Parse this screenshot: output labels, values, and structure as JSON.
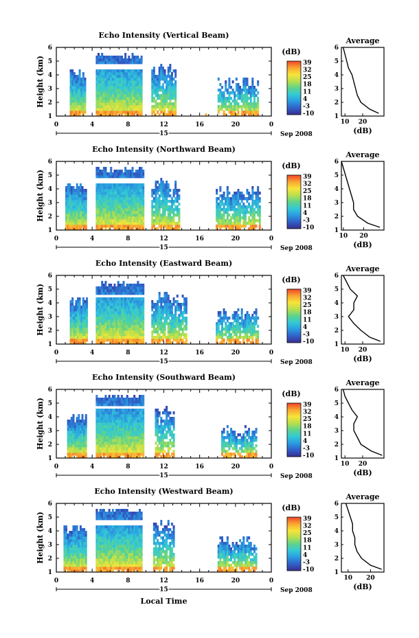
{
  "figure": {
    "colorbar": {
      "unit_label": "(dB)",
      "tick_labels": [
        "39",
        "32",
        "25",
        "18",
        "11",
        "4",
        "-3",
        "-10"
      ],
      "colors": [
        "#3a2f8f",
        "#2f5fc8",
        "#2b9be0",
        "#33c9d6",
        "#5fd38a",
        "#b9e04c",
        "#f7e43a",
        "#f9a531",
        "#f0442a"
      ]
    },
    "x_axis": {
      "tick_labels": [
        "0",
        "4",
        "8",
        "12",
        "16",
        "20",
        "0"
      ],
      "day_label": "15",
      "month_label": "Sep 2008",
      "label": "Local Time"
    },
    "avg_title": "Average",
    "avg_xlabel": "(dB)"
  },
  "chart_data": [
    {
      "type": "heatmap",
      "title": "Echo Intensity (Vertical Beam)",
      "ylabel": "Height (km)",
      "x_ticks": [
        0,
        4,
        8,
        12,
        16,
        20,
        24
      ],
      "y_ticks": [
        1,
        2,
        3,
        4,
        5,
        6
      ],
      "xlim": [
        0,
        24
      ],
      "ylim": [
        1,
        6
      ],
      "clim": [
        -10,
        39
      ],
      "segments": [
        [
          1.5,
          3.2
        ],
        [
          4.4,
          9.6
        ],
        [
          10.6,
          13.4
        ],
        [
          16.4,
          16.8
        ],
        [
          18.0,
          22.6
        ]
      ],
      "tops": [
        4.4,
        5.5,
        4.8,
        1.6,
        3.8
      ],
      "gap_rows": [
        4.5,
        4.7
      ],
      "average": {
        "title": "Average",
        "xlabel": "(dB)",
        "x_ticks": [
          10,
          20
        ],
        "xlim": [
          8,
          32
        ],
        "height": [
          1.2,
          1.5,
          2.0,
          2.5,
          3.0,
          3.5,
          4.0,
          4.5,
          5.0,
          5.5,
          6.0
        ],
        "value": [
          29,
          24,
          19,
          17,
          16,
          15,
          14,
          12,
          11,
          10,
          9
        ]
      }
    },
    {
      "type": "heatmap",
      "title": "Echo Intensity (Northward Beam)",
      "ylabel": "Height (km)",
      "x_ticks": [
        0,
        4,
        8,
        12,
        16,
        20,
        24
      ],
      "y_ticks": [
        1,
        2,
        3,
        4,
        5,
        6
      ],
      "xlim": [
        0,
        24
      ],
      "ylim": [
        1,
        6
      ],
      "clim": [
        -10,
        39
      ],
      "segments": [
        [
          1.0,
          3.4
        ],
        [
          4.4,
          9.7
        ],
        [
          10.6,
          13.8
        ],
        [
          17.8,
          22.8
        ]
      ],
      "tops": [
        4.6,
        5.5,
        4.7,
        4.2
      ],
      "gap_rows": [
        4.5,
        4.7
      ],
      "average": {
        "title": "Average",
        "xlabel": "(dB)",
        "x_ticks": [
          10,
          20
        ],
        "xlim": [
          9,
          30
        ],
        "height": [
          1.2,
          1.5,
          2.0,
          2.5,
          3.0,
          3.5,
          4.0,
          4.5,
          5.0,
          5.5,
          6.0
        ],
        "value": [
          28,
          22,
          17,
          15,
          15,
          14,
          13,
          12,
          11,
          10,
          9
        ]
      }
    },
    {
      "type": "heatmap",
      "title": "Echo Intensity (Eastward Beam)",
      "ylabel": "Height (km)",
      "x_ticks": [
        0,
        4,
        8,
        12,
        16,
        20,
        24
      ],
      "y_ticks": [
        1,
        2,
        3,
        4,
        5,
        6
      ],
      "xlim": [
        0,
        24
      ],
      "ylim": [
        1,
        6
      ],
      "clim": [
        -10,
        39
      ],
      "segments": [
        [
          1.5,
          3.4
        ],
        [
          4.4,
          9.7
        ],
        [
          10.6,
          14.6
        ],
        [
          17.8,
          22.6
        ]
      ],
      "tops": [
        4.6,
        5.5,
        4.8,
        3.6
      ],
      "gap_rows": [
        4.4,
        4.6
      ],
      "average": {
        "title": "Average",
        "xlabel": "(dB)",
        "x_ticks": [
          10,
          20
        ],
        "xlim": [
          8,
          32
        ],
        "height": [
          1.2,
          1.5,
          2.0,
          2.5,
          3.0,
          3.5,
          4.0,
          4.5,
          5.0,
          5.5,
          6.0
        ],
        "value": [
          30,
          24,
          19,
          15,
          12,
          15,
          15,
          17,
          13,
          11,
          9
        ]
      }
    },
    {
      "type": "heatmap",
      "title": "Echo Intensity (Southward Beam)",
      "ylabel": "Height (km)",
      "x_ticks": [
        0,
        4,
        8,
        12,
        16,
        20,
        24
      ],
      "y_ticks": [
        1,
        2,
        3,
        4,
        5,
        6
      ],
      "xlim": [
        0,
        24
      ],
      "ylim": [
        1,
        6
      ],
      "clim": [
        -10,
        39
      ],
      "segments": [
        [
          1.2,
          3.4
        ],
        [
          4.4,
          9.8
        ],
        [
          11.0,
          13.2
        ],
        [
          18.4,
          22.4
        ]
      ],
      "tops": [
        4.3,
        5.6,
        4.8,
        3.4
      ],
      "gap_rows": [
        4.6,
        4.8
      ],
      "average": {
        "title": "Average",
        "xlabel": "(dB)",
        "x_ticks": [
          10,
          20
        ],
        "xlim": [
          8,
          32
        ],
        "height": [
          1.2,
          1.5,
          2.0,
          2.5,
          3.0,
          3.5,
          4.0,
          4.5,
          5.0,
          5.5,
          6.0
        ],
        "value": [
          31,
          25,
          19,
          17,
          15,
          15,
          17,
          14,
          12,
          10,
          9
        ]
      }
    },
    {
      "type": "heatmap",
      "title": "Echo Intensity (Westward Beam)",
      "ylabel": "Height (km)",
      "x_ticks": [
        0,
        4,
        8,
        12,
        16,
        20,
        24
      ],
      "y_ticks": [
        1,
        2,
        3,
        4,
        5,
        6
      ],
      "xlim": [
        0,
        24
      ],
      "ylim": [
        1,
        6
      ],
      "clim": [
        -10,
        39
      ],
      "segments": [
        [
          0.8,
          3.4
        ],
        [
          4.4,
          9.6
        ],
        [
          10.8,
          13.2
        ],
        [
          18.0,
          22.4
        ]
      ],
      "tops": [
        4.6,
        5.6,
        4.8,
        3.6
      ],
      "gap_rows": [
        4.5,
        4.7
      ],
      "average": {
        "title": "Average",
        "xlabel": "(dB)",
        "x_ticks": [
          10,
          20
        ],
        "xlim": [
          7,
          26
        ],
        "height": [
          1.2,
          1.5,
          2.0,
          2.5,
          3.0,
          3.5,
          4.0,
          4.5,
          5.0,
          5.5,
          6.0
        ],
        "value": [
          25,
          20,
          16,
          14,
          13,
          13,
          12,
          12,
          11,
          10,
          9
        ]
      }
    }
  ]
}
